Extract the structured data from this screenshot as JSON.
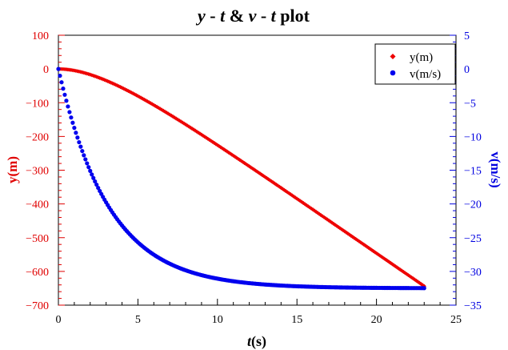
{
  "chart_data": {
    "type": "scatter",
    "title_parts": [
      {
        "text": "y",
        "italic": true
      },
      {
        "text": " - ",
        "italic": false
      },
      {
        "text": "t",
        "italic": true
      },
      {
        "text": " & ",
        "italic": false
      },
      {
        "text": "v",
        "italic": true
      },
      {
        "text": " - ",
        "italic": false
      },
      {
        "text": "t",
        "italic": true
      },
      {
        "text": " plot",
        "italic": false
      }
    ],
    "xlabel_parts": [
      {
        "text": "t",
        "italic": true
      },
      {
        "text": "(s)",
        "italic": false
      }
    ],
    "ylabel_left": "y(m)",
    "ylabel_right": "v(m/s)",
    "xlim": [
      0,
      25
    ],
    "ylim_left": [
      -700,
      100
    ],
    "ylim_right": [
      -35,
      5
    ],
    "xticks": [
      0,
      5,
      10,
      15,
      20,
      25
    ],
    "yticks_left": [
      100,
      0,
      -100,
      -200,
      -300,
      -400,
      -500,
      -600,
      -700
    ],
    "yticks_right": [
      5,
      0,
      -5,
      -10,
      -15,
      -20,
      -25,
      -30,
      -35
    ],
    "legend_position": "top-right",
    "t_start": 0,
    "t_end": 23,
    "t_step": 0.1,
    "terminal_velocity": -32.5,
    "time_constant": 3.2,
    "series": [
      {
        "name": "y(m)",
        "axis": "left",
        "color": "#ee0000",
        "marker": "diamond"
      },
      {
        "name": "v(m/s)",
        "axis": "right",
        "color": "#0000ee",
        "marker": "circle"
      }
    ]
  }
}
